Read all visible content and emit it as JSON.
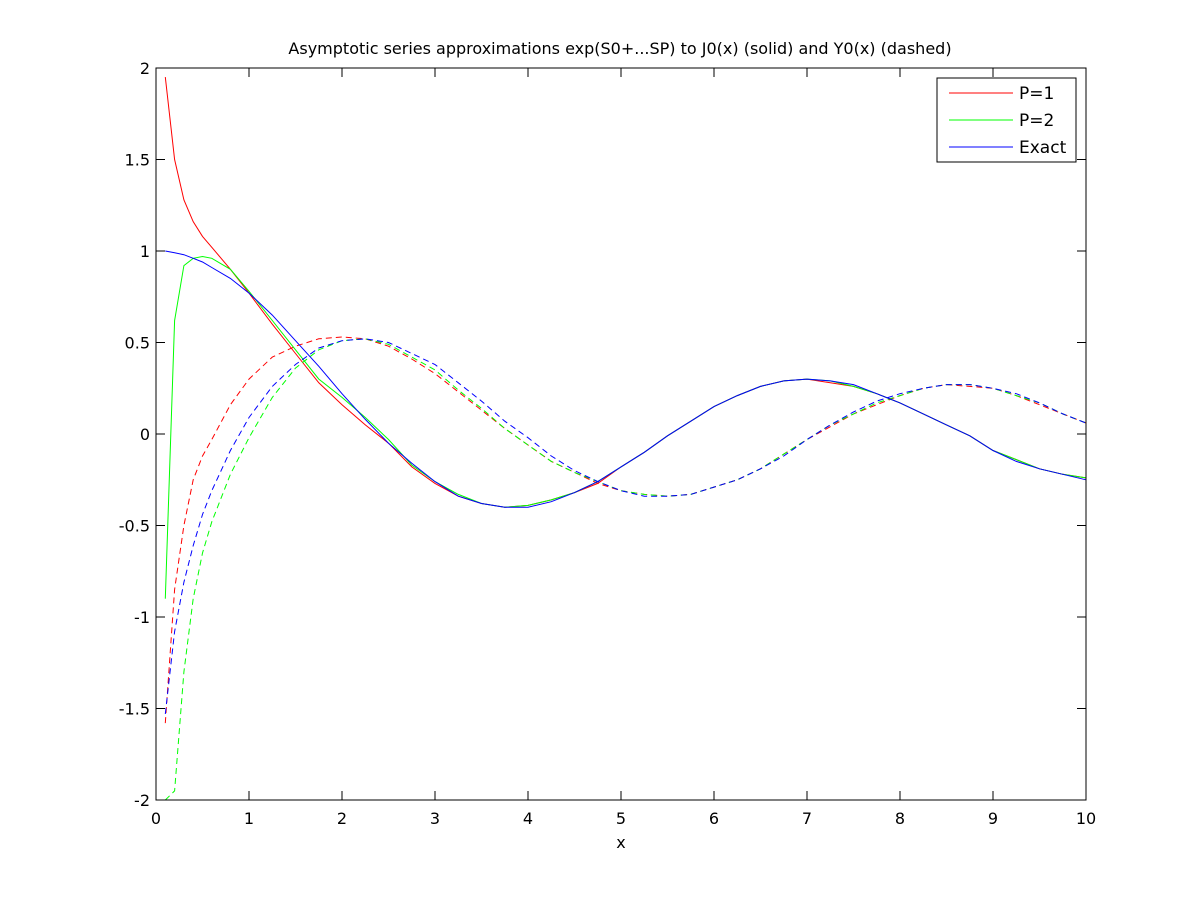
{
  "chart_data": {
    "type": "line",
    "title": "Asymptotic series approximations exp(S0+...SP) to J0(x) (solid) and Y0(x) (dashed)",
    "xlabel": "x",
    "ylabel": "",
    "xlim": [
      0,
      10
    ],
    "ylim": [
      -2,
      2
    ],
    "xticks": [
      0,
      1,
      2,
      3,
      4,
      5,
      6,
      7,
      8,
      9,
      10
    ],
    "xtick_labels": [
      "0",
      "1",
      "2",
      "3",
      "4",
      "5",
      "6",
      "7",
      "8",
      "9",
      "10"
    ],
    "yticks": [
      -2,
      -1.5,
      -1,
      -0.5,
      0,
      0.5,
      1,
      1.5,
      2
    ],
    "ytick_labels": [
      "-2",
      "-1.5",
      "-1",
      "-0.5",
      "0",
      "0.5",
      "1",
      "1.5",
      "2"
    ],
    "grid": false,
    "legend_position": "top-right",
    "x": [
      0.1,
      0.2,
      0.3,
      0.4,
      0.5,
      0.6,
      0.8,
      1.0,
      1.25,
      1.5,
      1.75,
      2.0,
      2.25,
      2.5,
      2.75,
      3.0,
      3.25,
      3.5,
      3.75,
      4.0,
      4.25,
      4.5,
      4.75,
      5.0,
      5.25,
      5.5,
      5.75,
      6.0,
      6.25,
      6.5,
      6.75,
      7.0,
      7.25,
      7.5,
      7.75,
      8.0,
      8.25,
      8.5,
      8.75,
      9.0,
      9.25,
      9.5,
      9.75,
      10.0
    ],
    "series": [
      {
        "name": "P=1",
        "color": "#ff0000",
        "j0": [
          1.95,
          1.5,
          1.28,
          1.16,
          1.08,
          1.02,
          0.9,
          0.77,
          0.6,
          0.44,
          0.28,
          0.16,
          0.05,
          -0.05,
          -0.18,
          -0.27,
          -0.34,
          -0.38,
          -0.4,
          -0.39,
          -0.36,
          -0.32,
          -0.27,
          -0.18,
          -0.1,
          -0.01,
          0.07,
          0.15,
          0.21,
          0.26,
          0.29,
          0.3,
          0.28,
          0.26,
          0.22,
          0.17,
          0.11,
          0.05,
          -0.01,
          -0.09,
          -0.14,
          -0.19,
          -0.22,
          -0.24
        ],
        "y0": [
          -1.58,
          -0.85,
          -0.5,
          -0.25,
          -0.12,
          -0.03,
          0.16,
          0.3,
          0.42,
          0.48,
          0.52,
          0.53,
          0.52,
          0.48,
          0.41,
          0.33,
          0.23,
          0.13,
          0.03,
          -0.06,
          -0.15,
          -0.21,
          -0.27,
          -0.31,
          -0.33,
          -0.34,
          -0.33,
          -0.29,
          -0.25,
          -0.19,
          -0.11,
          -0.03,
          0.04,
          0.11,
          0.16,
          0.21,
          0.25,
          0.27,
          0.26,
          0.25,
          0.21,
          0.16,
          0.11,
          0.06
        ]
      },
      {
        "name": "P=2",
        "color": "#00ff00",
        "j0": [
          -0.9,
          0.62,
          0.92,
          0.96,
          0.97,
          0.96,
          0.9,
          0.78,
          0.62,
          0.46,
          0.3,
          0.2,
          0.09,
          -0.03,
          -0.17,
          -0.26,
          -0.33,
          -0.38,
          -0.4,
          -0.39,
          -0.36,
          -0.32,
          -0.26,
          -0.18,
          -0.1,
          -0.01,
          0.07,
          0.15,
          0.21,
          0.26,
          0.29,
          0.3,
          0.29,
          0.26,
          0.22,
          0.17,
          0.11,
          0.05,
          -0.01,
          -0.09,
          -0.14,
          -0.19,
          -0.22,
          -0.24
        ],
        "y0": [
          -2.0,
          -1.95,
          -1.3,
          -0.9,
          -0.65,
          -0.48,
          -0.22,
          -0.02,
          0.2,
          0.36,
          0.46,
          0.51,
          0.52,
          0.49,
          0.42,
          0.35,
          0.24,
          0.14,
          0.03,
          -0.06,
          -0.15,
          -0.21,
          -0.26,
          -0.31,
          -0.33,
          -0.34,
          -0.33,
          -0.29,
          -0.25,
          -0.19,
          -0.11,
          -0.03,
          0.05,
          0.11,
          0.17,
          0.21,
          0.25,
          0.27,
          0.27,
          0.25,
          0.21,
          0.17,
          0.11,
          0.06
        ]
      },
      {
        "name": "Exact",
        "color": "#0000ff",
        "j0": [
          1.0,
          0.99,
          0.98,
          0.96,
          0.94,
          0.91,
          0.85,
          0.77,
          0.65,
          0.51,
          0.37,
          0.22,
          0.08,
          -0.05,
          -0.16,
          -0.26,
          -0.34,
          -0.38,
          -0.4,
          -0.4,
          -0.37,
          -0.32,
          -0.26,
          -0.18,
          -0.1,
          -0.01,
          0.07,
          0.15,
          0.21,
          0.26,
          0.29,
          0.3,
          0.29,
          0.27,
          0.22,
          0.17,
          0.11,
          0.05,
          -0.01,
          -0.09,
          -0.15,
          -0.19,
          -0.22,
          -0.25
        ],
        "y0": [
          -1.53,
          -1.08,
          -0.81,
          -0.61,
          -0.44,
          -0.31,
          -0.09,
          0.09,
          0.26,
          0.38,
          0.47,
          0.51,
          0.52,
          0.5,
          0.44,
          0.38,
          0.28,
          0.18,
          0.07,
          -0.02,
          -0.12,
          -0.2,
          -0.26,
          -0.31,
          -0.34,
          -0.34,
          -0.33,
          -0.29,
          -0.25,
          -0.19,
          -0.12,
          -0.03,
          0.05,
          0.12,
          0.18,
          0.22,
          0.25,
          0.27,
          0.27,
          0.25,
          0.22,
          0.17,
          0.11,
          0.06
        ]
      }
    ]
  }
}
